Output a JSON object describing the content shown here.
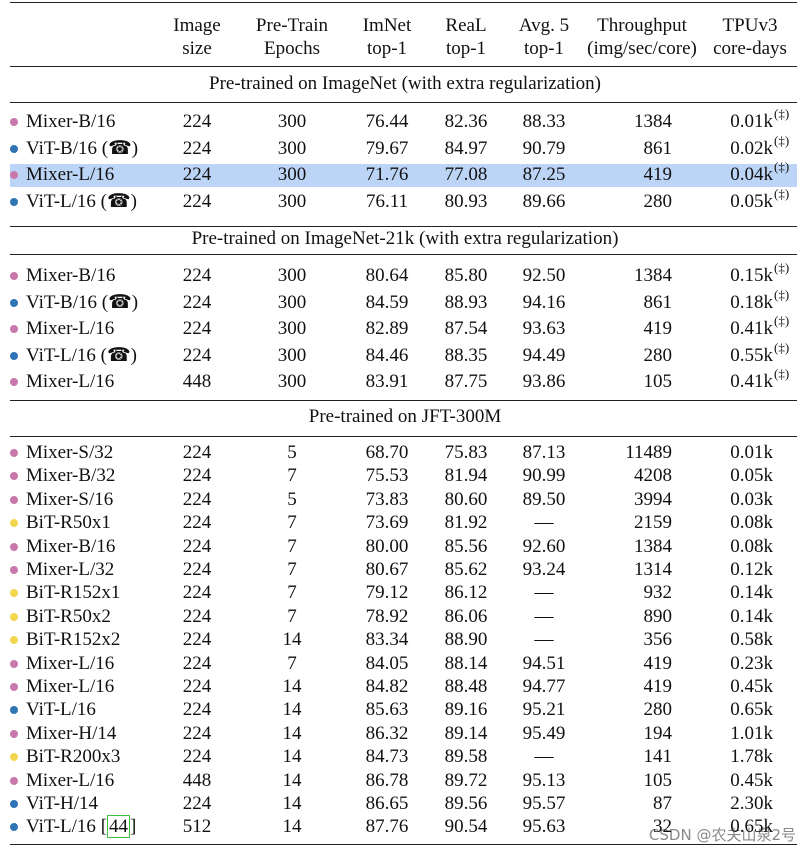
{
  "table": {
    "columns": [
      [
        "Image",
        "size"
      ],
      [
        "Pre-Train",
        "Epochs"
      ],
      [
        "ImNet",
        "top-1"
      ],
      [
        "ReaL",
        "top-1"
      ],
      [
        "Avg. 5",
        "top-1"
      ],
      [
        "Throughput",
        "(img/sec/core)"
      ],
      [
        "TPUv3",
        "core-days"
      ]
    ],
    "sections": [
      {
        "title": "Pre-trained on ImageNet (with extra regularization)",
        "rows": [
          {
            "model": "Mixer-B/16",
            "dot": "#c878aa",
            "cells": [
              "224",
              "300",
              "76.44",
              "82.36",
              "88.33",
              "1384",
              "0.01k"
            ],
            "note": "(‡)"
          },
          {
            "model": "ViT-B/16 (☎)",
            "dot": "#2f74b5",
            "cells": [
              "224",
              "300",
              "79.67",
              "84.97",
              "90.79",
              "861",
              "0.02k"
            ],
            "note": "(‡)"
          },
          {
            "model": "Mixer-L/16",
            "dot": "#c878aa",
            "cells": [
              "224",
              "300",
              "71.76",
              "77.08",
              "87.25",
              "419",
              "0.04k"
            ],
            "note": "(‡)",
            "highlight": true
          },
          {
            "model": "ViT-L/16 (☎)",
            "dot": "#2f74b5",
            "cells": [
              "224",
              "300",
              "76.11",
              "80.93",
              "89.66",
              "280",
              "0.05k"
            ],
            "note": "(‡)"
          }
        ]
      },
      {
        "title": "Pre-trained on ImageNet-21k (with extra regularization)",
        "rows": [
          {
            "model": "Mixer-B/16",
            "dot": "#c878aa",
            "cells": [
              "224",
              "300",
              "80.64",
              "85.80",
              "92.50",
              "1384",
              "0.15k"
            ],
            "note": "(‡)"
          },
          {
            "model": "ViT-B/16 (☎)",
            "dot": "#2f74b5",
            "cells": [
              "224",
              "300",
              "84.59",
              "88.93",
              "94.16",
              "861",
              "0.18k"
            ],
            "note": "(‡)"
          },
          {
            "model": "Mixer-L/16",
            "dot": "#c878aa",
            "cells": [
              "224",
              "300",
              "82.89",
              "87.54",
              "93.63",
              "419",
              "0.41k"
            ],
            "note": "(‡)"
          },
          {
            "model": "ViT-L/16 (☎)",
            "dot": "#2f74b5",
            "cells": [
              "224",
              "300",
              "84.46",
              "88.35",
              "94.49",
              "280",
              "0.55k"
            ],
            "note": "(‡)"
          },
          {
            "model": "Mixer-L/16",
            "dot": "#c878aa",
            "cells": [
              "448",
              "300",
              "83.91",
              "87.75",
              "93.86",
              "105",
              "0.41k"
            ],
            "note": "(‡)"
          }
        ]
      },
      {
        "title": "Pre-trained on JFT-300M",
        "rows": [
          {
            "model": "Mixer-S/32",
            "dot": "#c878aa",
            "cells": [
              "224",
              "5",
              "68.70",
              "75.83",
              "87.13",
              "11489",
              "0.01k"
            ]
          },
          {
            "model": "Mixer-B/32",
            "dot": "#c878aa",
            "cells": [
              "224",
              "7",
              "75.53",
              "81.94",
              "90.99",
              "4208",
              "0.05k"
            ]
          },
          {
            "model": "Mixer-S/16",
            "dot": "#c878aa",
            "cells": [
              "224",
              "5",
              "73.83",
              "80.60",
              "89.50",
              "3994",
              "0.03k"
            ]
          },
          {
            "model": "BiT-R50x1",
            "dot": "#f2d64f",
            "cells": [
              "224",
              "7",
              "73.69",
              "81.92",
              "—",
              "2159",
              "0.08k"
            ]
          },
          {
            "model": "Mixer-B/16",
            "dot": "#c878aa",
            "cells": [
              "224",
              "7",
              "80.00",
              "85.56",
              "92.60",
              "1384",
              "0.08k"
            ]
          },
          {
            "model": "Mixer-L/32",
            "dot": "#c878aa",
            "cells": [
              "224",
              "7",
              "80.67",
              "85.62",
              "93.24",
              "1314",
              "0.12k"
            ]
          },
          {
            "model": "BiT-R152x1",
            "dot": "#f2d64f",
            "cells": [
              "224",
              "7",
              "79.12",
              "86.12",
              "—",
              "932",
              "0.14k"
            ]
          },
          {
            "model": "BiT-R50x2",
            "dot": "#f2d64f",
            "cells": [
              "224",
              "7",
              "78.92",
              "86.06",
              "—",
              "890",
              "0.14k"
            ]
          },
          {
            "model": "BiT-R152x2",
            "dot": "#f2d64f",
            "cells": [
              "224",
              "14",
              "83.34",
              "88.90",
              "—",
              "356",
              "0.58k"
            ]
          },
          {
            "model": "Mixer-L/16",
            "dot": "#c878aa",
            "cells": [
              "224",
              "7",
              "84.05",
              "88.14",
              "94.51",
              "419",
              "0.23k"
            ]
          },
          {
            "model": "Mixer-L/16",
            "dot": "#c878aa",
            "cells": [
              "224",
              "14",
              "84.82",
              "88.48",
              "94.77",
              "419",
              "0.45k"
            ]
          },
          {
            "model": "ViT-L/16",
            "dot": "#2f74b5",
            "cells": [
              "224",
              "14",
              "85.63",
              "89.16",
              "95.21",
              "280",
              "0.65k"
            ]
          },
          {
            "model": "Mixer-H/14",
            "dot": "#c878aa",
            "cells": [
              "224",
              "14",
              "86.32",
              "89.14",
              "95.49",
              "194",
              "1.01k"
            ]
          },
          {
            "model": "BiT-R200x3",
            "dot": "#f2d64f",
            "cells": [
              "224",
              "14",
              "84.73",
              "89.58",
              "—",
              "141",
              "1.78k"
            ]
          },
          {
            "model": "Mixer-L/16",
            "dot": "#c878aa",
            "cells": [
              "448",
              "14",
              "86.78",
              "89.72",
              "95.13",
              "105",
              "0.45k"
            ]
          },
          {
            "model": "ViT-H/14",
            "dot": "#2f74b5",
            "cells": [
              "224",
              "14",
              "86.65",
              "89.56",
              "95.57",
              "87",
              "2.30k"
            ]
          },
          {
            "model": "ViT-L/16",
            "dot": "#2f74b5",
            "cite": [
              "[",
              "44",
              "]"
            ],
            "cells": [
              "512",
              "14",
              "87.76",
              "90.54",
              "95.63",
              "32",
              "0.65k"
            ]
          }
        ]
      }
    ]
  },
  "watermark": "CSDN @农夫山泉2号"
}
